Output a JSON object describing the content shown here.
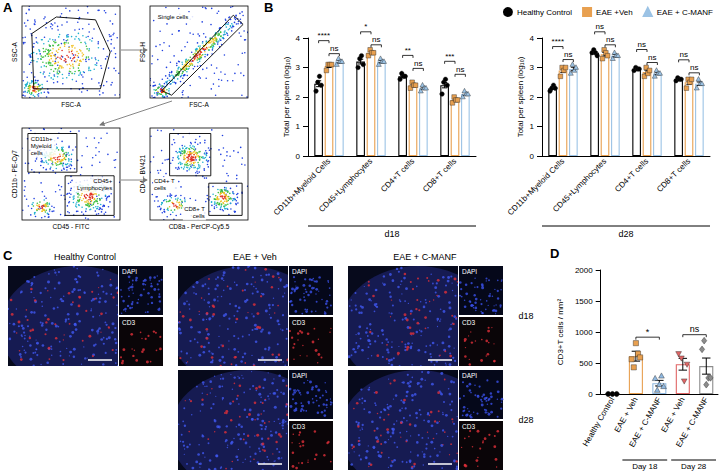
{
  "panel_letters": [
    "A",
    "B",
    "C",
    "D"
  ],
  "flow_cytometry": {
    "plots": [
      {
        "x": "FSC-A",
        "y": "SSC-A"
      },
      {
        "x": "FSC-A",
        "y": "FSC-H",
        "gates": [
          "Single cells"
        ]
      },
      {
        "x": "CD45 - FITC",
        "y": "CD11b - PE-Cy7",
        "gates": [
          "CD11b+ Myeloid cells",
          "CD45+ Lymphocytes"
        ]
      },
      {
        "x": "CD8a - PerCP-Cy5.5",
        "y": "CD4 - BV421",
        "gates": [
          "CD4+ T cells",
          "CD8+ T cells"
        ]
      }
    ]
  },
  "microscopy": {
    "columns": [
      "Healthy Control",
      "EAE + Veh",
      "EAE + C-MANF"
    ],
    "rows": [
      "d18",
      "d28"
    ],
    "channels": [
      "DAPI",
      "CD3"
    ],
    "images": [
      [
        true,
        true,
        true
      ],
      [
        false,
        true,
        true
      ]
    ]
  },
  "chart_data": [
    {
      "type": "bar",
      "xlabel": "d18",
      "ylabel": "Total per spleen (log₁₀)",
      "categories": [
        "CD11b+Myeloid Cells",
        "CD45+Lymphocytes",
        "CD4+T cells",
        "CD8+T cells"
      ],
      "ylim": [
        0,
        4
      ],
      "yticks": [
        0,
        1,
        2,
        3,
        4
      ],
      "series": [
        {
          "name": "Healthy Control",
          "color": "#000000",
          "marker": "circle",
          "values": [
            2.45,
            3.2,
            2.7,
            2.4
          ],
          "errors": [
            0.1,
            0.08,
            0.04,
            0.09
          ],
          "points": [
            [
              2.2,
              2.5,
              2.7,
              2.4
            ],
            [
              3.0,
              3.3,
              3.4,
              3.1
            ],
            [
              2.6,
              2.8,
              2.7,
              2.7
            ],
            [
              2.1,
              2.5,
              2.6,
              2.4
            ]
          ]
        },
        {
          "name": "EAE +Veh",
          "color": "#E8A050",
          "marker": "square",
          "values": [
            3.05,
            3.5,
            2.4,
            1.9
          ],
          "errors": [
            0.05,
            0.05,
            0.05,
            0.04
          ],
          "points": [
            [
              2.9,
              3.1,
              3.1,
              3.1
            ],
            [
              3.4,
              3.6,
              3.5,
              3.5
            ],
            [
              2.3,
              2.5,
              2.4,
              2.4
            ],
            [
              1.8,
              2.0,
              1.9,
              1.9
            ]
          ]
        },
        {
          "name": "EAE + C-MANF",
          "color": "#9CC3E5",
          "marker": "triangle",
          "values": [
            3.2,
            3.2,
            2.3,
            2.1
          ],
          "errors": [
            0.05,
            0.04,
            0.04,
            0.05
          ],
          "points": [
            [
              3.1,
              3.3,
              3.2,
              3.2
            ],
            [
              3.1,
              3.3,
              3.2,
              3.2
            ],
            [
              2.2,
              2.4,
              2.3,
              2.3
            ],
            [
              2.0,
              2.2,
              2.1,
              2.1
            ]
          ]
        }
      ],
      "comparisons": [
        {
          "category": 0,
          "from": 0,
          "to": 1,
          "label": "****"
        },
        {
          "category": 0,
          "from": 1,
          "to": 2,
          "label": "ns"
        },
        {
          "category": 1,
          "from": 0,
          "to": 1,
          "label": "*"
        },
        {
          "category": 1,
          "from": 1,
          "to": 2,
          "label": "ns"
        },
        {
          "category": 2,
          "from": 0,
          "to": 1,
          "label": "**"
        },
        {
          "category": 2,
          "from": 1,
          "to": 2,
          "label": "ns"
        },
        {
          "category": 3,
          "from": 0,
          "to": 1,
          "label": "***"
        },
        {
          "category": 3,
          "from": 1,
          "to": 2,
          "label": "ns"
        }
      ]
    },
    {
      "type": "bar",
      "xlabel": "d28",
      "ylabel": "Total per spleen (log₁₀)",
      "legend": "top right",
      "categories": [
        "CD11b+Myeloid Cells",
        "CD45+Lymphocytes",
        "CD4+T cells",
        "CD8+T cells"
      ],
      "ylim": [
        0,
        4
      ],
      "yticks": [
        0,
        1,
        2,
        3,
        4
      ],
      "series": [
        {
          "name": "Healthy Control",
          "color": "#000000",
          "marker": "circle",
          "values": [
            2.3,
            3.5,
            2.95,
            2.6
          ],
          "errors": [
            0.04,
            0.04,
            0.03,
            0.03
          ],
          "points": [
            [
              2.2,
              2.3,
              2.4,
              2.3
            ],
            [
              3.5,
              3.6,
              3.5,
              3.4
            ],
            [
              2.9,
              3.0,
              2.95,
              2.95
            ],
            [
              2.55,
              2.65,
              2.6,
              2.6
            ]
          ]
        },
        {
          "name": "EAE +Veh",
          "color": "#E8A050",
          "marker": "square",
          "values": [
            2.9,
            3.45,
            2.85,
            2.5
          ],
          "errors": [
            0.07,
            0.06,
            0.06,
            0.07
          ],
          "points": [
            [
              2.7,
              3.0,
              2.9,
              3.0
            ],
            [
              3.3,
              3.6,
              3.5,
              3.4
            ],
            [
              2.7,
              3.0,
              2.8,
              2.9
            ],
            [
              2.3,
              2.6,
              2.5,
              2.6
            ]
          ]
        },
        {
          "name": "EAE + C-MANF",
          "color": "#9CC3E5",
          "marker": "triangle",
          "values": [
            2.95,
            3.4,
            2.8,
            2.45
          ],
          "errors": [
            0.06,
            0.04,
            0.04,
            0.06
          ],
          "points": [
            [
              2.8,
              3.1,
              2.9,
              3.0
            ],
            [
              3.3,
              3.5,
              3.4,
              3.4
            ],
            [
              2.7,
              2.9,
              2.8,
              2.8
            ],
            [
              2.3,
              2.6,
              2.45,
              2.45
            ]
          ]
        }
      ],
      "comparisons": [
        {
          "category": 0,
          "from": 0,
          "to": 1,
          "label": "****"
        },
        {
          "category": 0,
          "from": 1,
          "to": 2,
          "label": "ns"
        },
        {
          "category": 1,
          "from": 0,
          "to": 1,
          "label": "ns"
        },
        {
          "category": 1,
          "from": 1,
          "to": 2,
          "label": "ns"
        },
        {
          "category": 2,
          "from": 0,
          "to": 1,
          "label": "ns"
        },
        {
          "category": 2,
          "from": 1,
          "to": 2,
          "label": "ns"
        },
        {
          "category": 3,
          "from": 0,
          "to": 1,
          "label": "ns"
        },
        {
          "category": 3,
          "from": 1,
          "to": 2,
          "label": "ns"
        }
      ]
    },
    {
      "type": "bar",
      "ylabel": "CD3+T cells / mm²",
      "categories": [
        "Healthy Control",
        "EAE + Veh",
        "EAE + C-MANF",
        "EAE + Veh",
        "EAE + C-MANF"
      ],
      "ylim": [
        0,
        2000
      ],
      "yticks": [
        0,
        500,
        1000,
        1500,
        2000
      ],
      "series": [
        {
          "color": "#000000",
          "marker": "circle",
          "values": [
            0,
            null,
            null,
            null,
            null
          ],
          "errors": [
            0,
            null,
            null,
            null,
            null
          ],
          "points": [
            [
              0,
              0,
              0
            ],
            null,
            null,
            null,
            null
          ]
        },
        {
          "color": "#E8A050",
          "marker": "square",
          "values": [
            null,
            610,
            null,
            null,
            null
          ],
          "errors": [
            null,
            80,
            null,
            null,
            null
          ],
          "points": [
            null,
            [
              560,
              430,
              820,
              650,
              590
            ],
            null,
            null,
            null
          ]
        },
        {
          "color": "#8FB8E0",
          "marker": "triangle",
          "values": [
            null,
            null,
            175,
            null,
            null
          ],
          "errors": [
            null,
            null,
            45,
            null,
            null
          ],
          "points": [
            null,
            null,
            [
              250,
              60,
              150,
              290,
              120
            ],
            null,
            null
          ]
        },
        {
          "color": "#E06666",
          "marker": "triangle-down",
          "values": [
            null,
            null,
            null,
            480,
            null
          ],
          "errors": [
            null,
            null,
            null,
            95,
            null
          ],
          "points": [
            null,
            null,
            null,
            [
              650,
              580,
              210,
              480
            ],
            null
          ]
        },
        {
          "color": "#8C8C8C",
          "marker": "diamond",
          "values": [
            null,
            null,
            null,
            null,
            450
          ],
          "errors": [
            null,
            null,
            null,
            null,
            130
          ],
          "points": [
            null,
            null,
            null,
            null,
            [
              720,
              860,
              150,
              260,
              260
            ]
          ]
        }
      ],
      "groups": [
        {
          "label": "Day 18",
          "from": 1,
          "to": 2
        },
        {
          "label": "Day 28",
          "from": 3,
          "to": 4
        }
      ],
      "comparisons": [
        {
          "from": 1,
          "to": 2,
          "label": "*"
        },
        {
          "from": 3,
          "to": 4,
          "label": "ns"
        }
      ]
    }
  ]
}
